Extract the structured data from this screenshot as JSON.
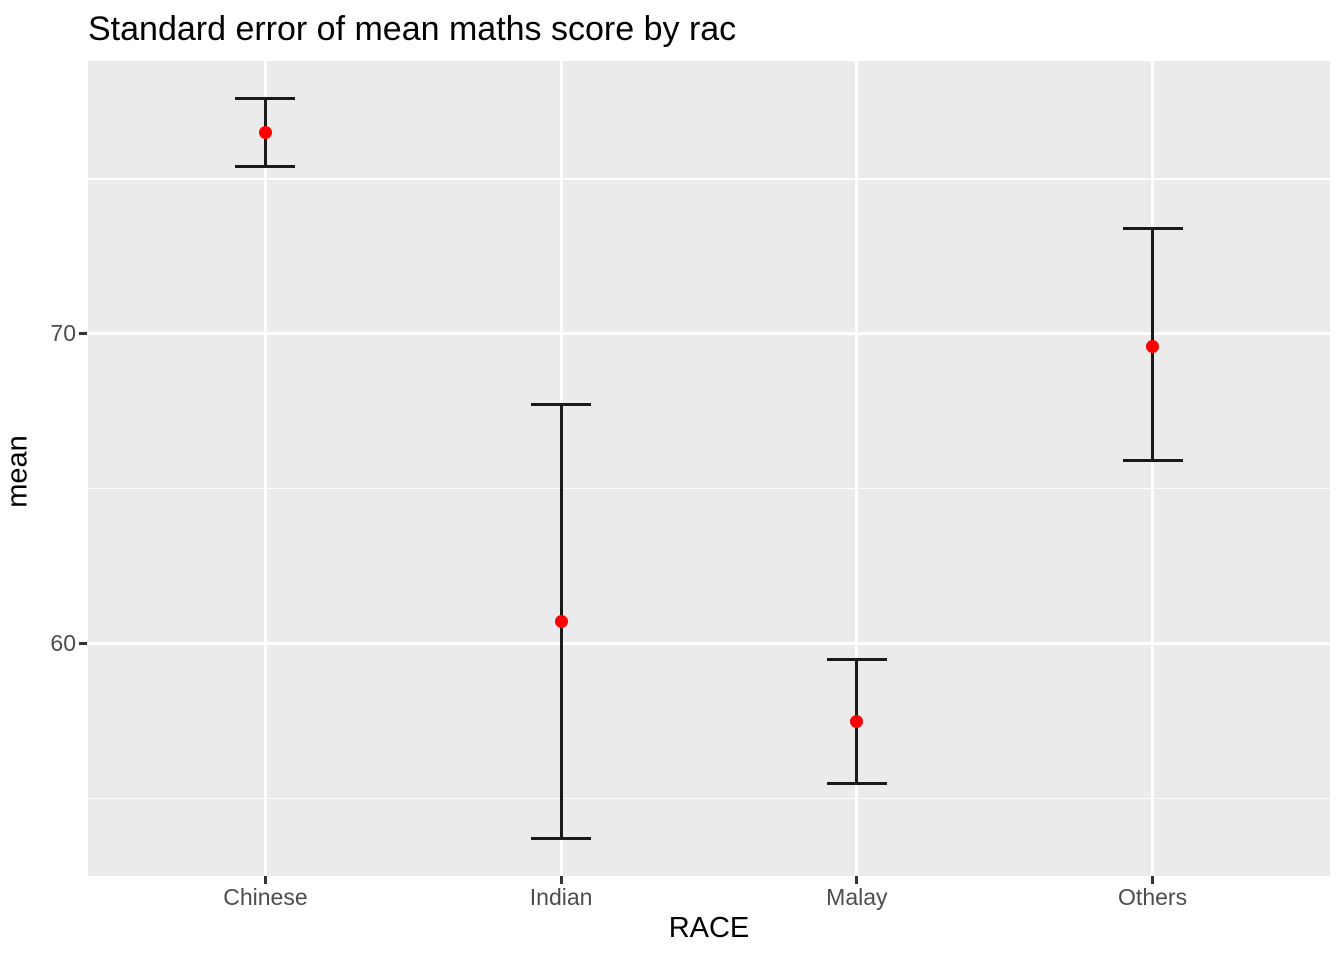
{
  "chart_data": {
    "type": "errorbar",
    "title": "Standard error of mean maths score by rac",
    "xlabel": "RACE",
    "ylabel": "mean",
    "categories": [
      "Chinese",
      "Indian",
      "Malay",
      "Others"
    ],
    "series": [
      {
        "name": "mean maths score ± standard error",
        "means": [
          76.5,
          60.7,
          57.5,
          69.6
        ],
        "lower": [
          75.4,
          53.7,
          55.5,
          65.9
        ],
        "upper": [
          77.6,
          67.7,
          59.5,
          73.4
        ]
      }
    ],
    "ylim": [
      52.5,
      78.8
    ],
    "yticks_major": [
      70,
      60
    ],
    "yticks_minor": [
      75,
      65,
      55
    ],
    "grid": true,
    "legend": "none",
    "colors": {
      "point": "#FF0000",
      "errorbar": "#1A1A1A",
      "panel_background": "#EBEBEB",
      "gridline": "#FFFFFF",
      "tick_label": "#4D4D4D",
      "axis_title": "#000000",
      "tick_mark": "#333333"
    }
  }
}
